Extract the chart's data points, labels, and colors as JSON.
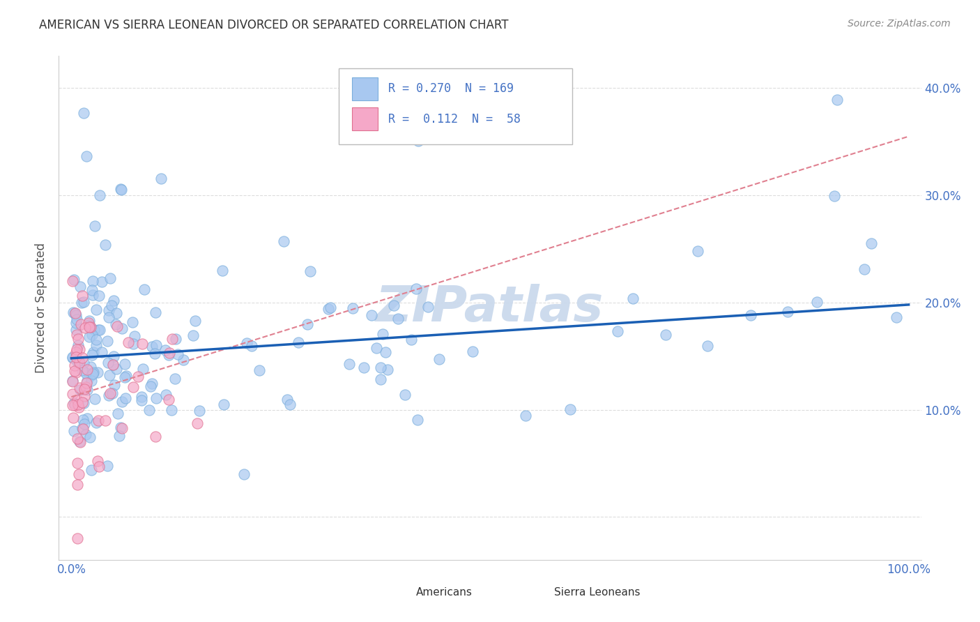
{
  "title": "AMERICAN VS SIERRA LEONEAN DIVORCED OR SEPARATED CORRELATION CHART",
  "source": "Source: ZipAtlas.com",
  "ylabel": "Divorced or Separated",
  "legend_R1": "0.270",
  "legend_N1": "169",
  "legend_R2": "0.112",
  "legend_N2": "58",
  "color_american": "#a8c8f0",
  "color_sierraleonean": "#f5a8c8",
  "color_trendline_american": "#1a5fb4",
  "color_trendline_dashed": "#e08090",
  "color_title": "#333333",
  "color_source": "#888888",
  "color_axis_label": "#555555",
  "color_tick_label": "#4472c4",
  "color_legend_values": "#4472c4",
  "watermark_text": "ZIPatlas",
  "watermark_color": "#c8d8ec",
  "background_color": "#ffffff",
  "grid_color": "#dddddd",
  "yticks": [
    0.0,
    0.1,
    0.2,
    0.3,
    0.4
  ],
  "ytick_labels": [
    "",
    "10.0%",
    "20.0%",
    "30.0%",
    "40.0%"
  ],
  "xlim": [
    -0.015,
    1.015
  ],
  "ylim": [
    -0.04,
    0.43
  ],
  "american_trend_x0": 0.0,
  "american_trend_y0": 0.148,
  "american_trend_x1": 1.0,
  "american_trend_y1": 0.198,
  "dashed_trend_x0": 0.0,
  "dashed_trend_y0": 0.112,
  "dashed_trend_x1": 1.0,
  "dashed_trend_y1": 0.355
}
